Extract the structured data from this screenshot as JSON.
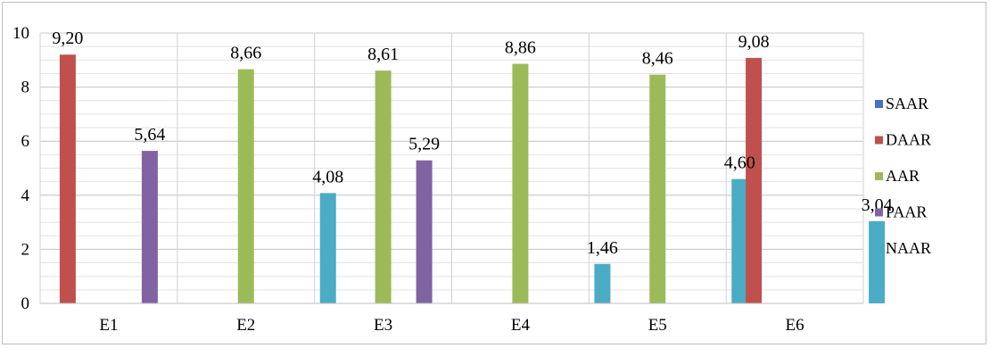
{
  "chart_data": {
    "type": "bar",
    "categories": [
      "E1",
      "E2",
      "E3",
      "E4",
      "E5",
      "E6"
    ],
    "series": [
      {
        "name": "SAAR",
        "color": "#4472C4",
        "values": [
          null,
          null,
          null,
          null,
          null,
          null
        ]
      },
      {
        "name": "DAAR",
        "color": "#C0504D",
        "values": [
          9.2,
          null,
          null,
          null,
          null,
          9.08
        ]
      },
      {
        "name": "AAR",
        "color": "#9BBB59",
        "values": [
          null,
          8.66,
          8.61,
          8.86,
          8.46,
          null
        ]
      },
      {
        "name": "PAAR",
        "color": "#8064A2",
        "values": [
          5.64,
          null,
          5.29,
          null,
          null,
          null
        ]
      },
      {
        "name": "NAAR",
        "color": "#4BACC6",
        "values": [
          null,
          4.08,
          null,
          1.46,
          4.6,
          3.04
        ]
      }
    ],
    "data_labels": [
      [
        "",
        "9,20",
        "",
        "5,64",
        ""
      ],
      [
        "",
        "",
        "8,66",
        "",
        "4,08"
      ],
      [
        "",
        "",
        "8,61",
        "5,29",
        ""
      ],
      [
        "",
        "",
        "8,86",
        "",
        "1,46"
      ],
      [
        "",
        "",
        "8,46",
        "",
        "4,60"
      ],
      [
        "",
        "9,08",
        "",
        "",
        "3,04"
      ]
    ],
    "ylim": [
      0,
      10
    ],
    "yticks": [
      0,
      2,
      4,
      6,
      8,
      10
    ],
    "grid": true,
    "legend": "right",
    "title": "",
    "xlabel": "",
    "ylabel": ""
  }
}
